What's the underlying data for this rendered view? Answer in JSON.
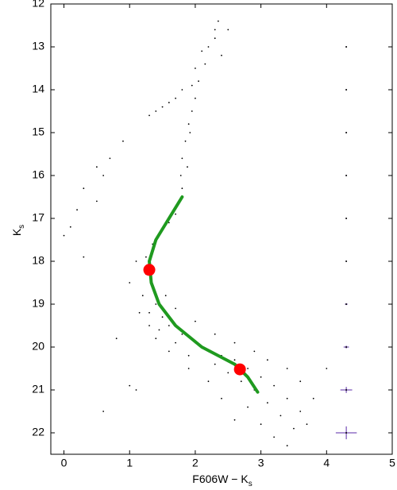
{
  "chart_data": {
    "type": "scatter",
    "xlabel": {
      "text": "F606W − K",
      "sub": "s"
    },
    "ylabel": {
      "text": "K",
      "sub": "s"
    },
    "xlim": [
      -0.2,
      5
    ],
    "ylim": [
      22.5,
      12
    ],
    "xticks": [
      0,
      1,
      2,
      3,
      4,
      5
    ],
    "yticks": [
      12,
      13,
      14,
      15,
      16,
      17,
      18,
      19,
      20,
      21,
      22
    ],
    "color": "#000000",
    "x": [
      1.25,
      1.35,
      1.2,
      1.4,
      1.3,
      1.5,
      1.6,
      1.45,
      1.8,
      1.7,
      2.0,
      2.2,
      1.9,
      2.4,
      2.3,
      2.6,
      2.5,
      2.8,
      2.7,
      3.0,
      2.9,
      3.2,
      3.1,
      2.8,
      3.4,
      3.3,
      3.6,
      3.5,
      3.0,
      3.7,
      3.2,
      3.4,
      2.6,
      2.4,
      2.2,
      1.9,
      1.6,
      1.4,
      1.3,
      1.15,
      3.4,
      3.6,
      3.8,
      3.1,
      2.9,
      2.6,
      2.3,
      2.0,
      1.7,
      1.55,
      1.25,
      1.35,
      1.45,
      1.6,
      1.7,
      1.75,
      1.8,
      1.78,
      1.8,
      1.85,
      1.9,
      1.95,
      2.0,
      2.05,
      2.15,
      2.2,
      2.3,
      2.35,
      1.88,
      1.92,
      1.3,
      1.4,
      1.5,
      1.6,
      1.7,
      1.8,
      1.95,
      2.0,
      2.1,
      0.3,
      0.5,
      0.2,
      0.1,
      0.0,
      0.3,
      0.6,
      0.7,
      0.9,
      0.5,
      0.8,
      0.6,
      1.0,
      1.1,
      4.0,
      1.1,
      1.0,
      2.3,
      2.4,
      2.5
    ],
    "y": [
      18.3,
      18.6,
      18.8,
      19.0,
      19.2,
      19.3,
      19.5,
      19.6,
      19.7,
      19.9,
      19.9,
      20.1,
      20.2,
      20.2,
      20.4,
      20.3,
      20.6,
      20.5,
      20.8,
      20.7,
      21.0,
      20.9,
      21.3,
      21.4,
      21.2,
      21.6,
      21.5,
      21.9,
      21.8,
      21.8,
      22.1,
      22.3,
      21.7,
      21.2,
      20.8,
      20.5,
      20.1,
      19.8,
      19.5,
      19.2,
      20.5,
      20.8,
      21.2,
      20.3,
      20.1,
      19.9,
      19.7,
      19.4,
      19.1,
      18.8,
      17.9,
      17.6,
      17.4,
      17.1,
      16.9,
      16.6,
      16.3,
      16.0,
      15.6,
      15.2,
      14.8,
      14.5,
      14.2,
      13.8,
      13.4,
      13.0,
      12.6,
      12.4,
      15.8,
      15.0,
      14.6,
      14.5,
      14.4,
      14.3,
      14.2,
      14.0,
      13.9,
      13.5,
      13.1,
      16.3,
      16.6,
      16.8,
      17.2,
      17.4,
      17.9,
      16.0,
      15.6,
      15.2,
      15.8,
      19.8,
      21.5,
      20.9,
      21.0,
      20.5,
      18.0,
      18.5,
      12.8,
      13.2,
      12.6
    ],
    "fiducial": {
      "color": "#1f9a1f",
      "x": [
        1.8,
        1.6,
        1.4,
        1.3,
        1.33,
        1.45,
        1.7,
        2.1,
        2.6,
        2.8,
        2.95
      ],
      "y": [
        16.5,
        17.0,
        17.5,
        18.0,
        18.5,
        19.0,
        19.5,
        20.0,
        20.4,
        20.7,
        21.05
      ]
    },
    "reference_points": {
      "color": "#ff0000",
      "x": [
        1.3,
        2.68
      ],
      "y": [
        18.2,
        20.52
      ]
    },
    "error_bars": {
      "color": "#5a2aa8",
      "x": [
        4.3,
        4.3,
        4.3,
        4.3,
        4.3,
        4.3,
        4.3,
        4.3,
        4.3,
        4.3
      ],
      "y": [
        13,
        14,
        15,
        16,
        17,
        18,
        19,
        20,
        21,
        22
      ],
      "xerr": [
        0.01,
        0.01,
        0.01,
        0.01,
        0.01,
        0.01,
        0.02,
        0.04,
        0.09,
        0.16
      ],
      "yerr": [
        0.01,
        0.01,
        0.01,
        0.01,
        0.01,
        0.01,
        0.02,
        0.03,
        0.07,
        0.15
      ]
    }
  }
}
